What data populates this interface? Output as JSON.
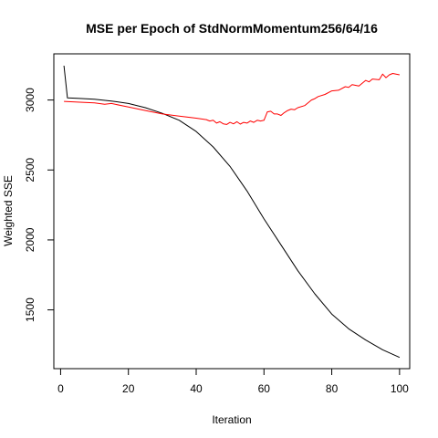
{
  "chart_data": {
    "type": "line",
    "title": "MSE per Epoch of StdNormMomentum256/64/16",
    "xlabel": "Iteration",
    "ylabel": "Weighted SSE",
    "xlim": [
      -2,
      103
    ],
    "ylim": [
      1080,
      3330
    ],
    "x_ticks": [
      0,
      20,
      40,
      60,
      80,
      100
    ],
    "y_ticks": [
      1500,
      2000,
      2500,
      3000
    ],
    "grid": false,
    "legend": "none",
    "series": [
      {
        "color": "#000000",
        "x": [
          1,
          2,
          5,
          10,
          15,
          20,
          25,
          30,
          35,
          40,
          45,
          50,
          55,
          60,
          65,
          70,
          75,
          80,
          85,
          90,
          95,
          100
        ],
        "y": [
          3245,
          3015,
          3012,
          3005,
          2993,
          2975,
          2945,
          2905,
          2855,
          2775,
          2665,
          2525,
          2350,
          2150,
          1965,
          1780,
          1615,
          1470,
          1365,
          1285,
          1215,
          1160
        ]
      },
      {
        "color": "#ff0000",
        "x": [
          1,
          5,
          10,
          13,
          15,
          20,
          25,
          30,
          35,
          40,
          43,
          44,
          45,
          46,
          47,
          48,
          49,
          50,
          51,
          52,
          53,
          54,
          55,
          56,
          57,
          58,
          59,
          60,
          61,
          62,
          63,
          64,
          65,
          66,
          67,
          68,
          69,
          70,
          72,
          74,
          75,
          76,
          78,
          80,
          82,
          84,
          85,
          86,
          88,
          90,
          91,
          92,
          94,
          95,
          96,
          97,
          98,
          99,
          100
        ],
        "y": [
          2990,
          2985,
          2980,
          2970,
          2975,
          2950,
          2925,
          2900,
          2885,
          2870,
          2860,
          2850,
          2855,
          2835,
          2845,
          2830,
          2825,
          2840,
          2830,
          2845,
          2828,
          2840,
          2835,
          2850,
          2840,
          2855,
          2850,
          2855,
          2915,
          2920,
          2900,
          2900,
          2890,
          2910,
          2925,
          2935,
          2930,
          2945,
          2960,
          3000,
          3010,
          3025,
          3040,
          3065,
          3070,
          3095,
          3090,
          3110,
          3100,
          3140,
          3130,
          3150,
          3145,
          3185,
          3160,
          3180,
          3190,
          3185,
          3180
        ]
      }
    ]
  }
}
